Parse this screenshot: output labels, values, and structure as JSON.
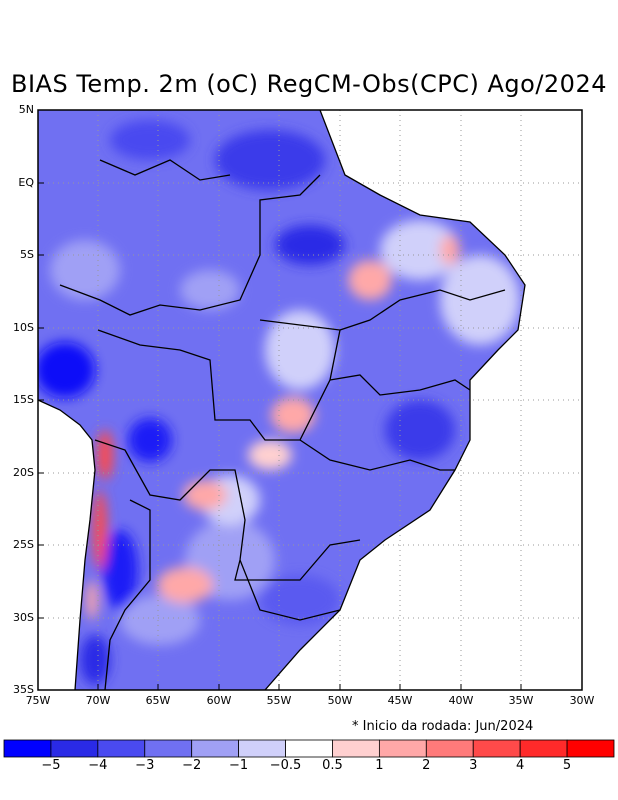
{
  "title": "BIAS Temp. 2m (oC) RegCM-Obs(CPC) Ago/2024",
  "note": "* Inicio da rodada: Jun/2024",
  "lat_labels": [
    "5N",
    "EQ",
    "5S",
    "10S",
    "15S",
    "20S",
    "25S",
    "30S",
    "35S"
  ],
  "lon_labels": [
    "75W",
    "70W",
    "65W",
    "60W",
    "55W",
    "50W",
    "45W",
    "40W",
    "35W",
    "30W"
  ],
  "colorbar": {
    "labels": [
      "−5",
      "−4",
      "−3",
      "−2",
      "−1",
      "−0.5",
      "0.5",
      "1",
      "2",
      "3",
      "4",
      "5"
    ],
    "colors": [
      "#0000ff",
      "#2a2ae6",
      "#4a4af0",
      "#7070f2",
      "#a0a0f5",
      "#d0d0fa",
      "#ffffff",
      "#ffd0d0",
      "#ffa8a8",
      "#ff7a7a",
      "#ff4a4a",
      "#ff2a2a",
      "#ff0000"
    ]
  }
}
